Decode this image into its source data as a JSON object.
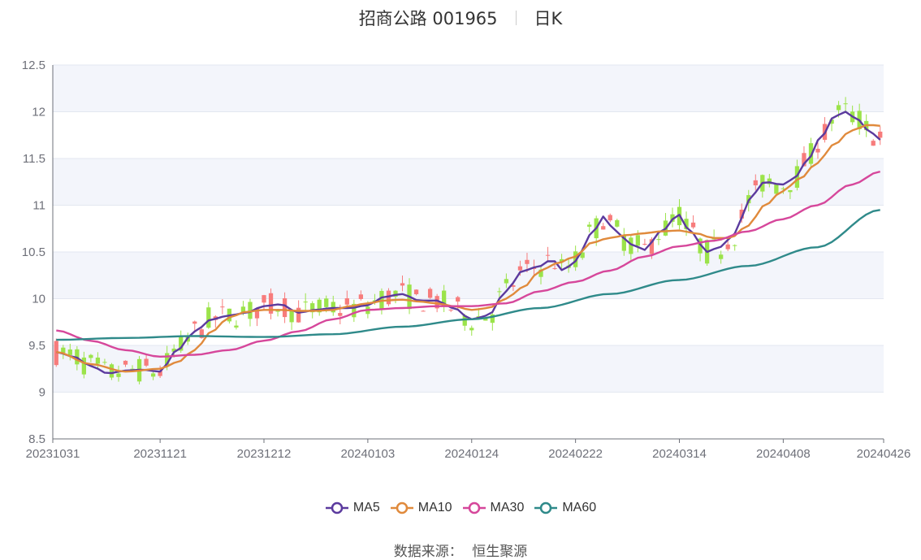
{
  "header": {
    "title": "招商公路 001965",
    "period": "日K"
  },
  "source": {
    "label": "数据来源：",
    "value": "恒生聚源"
  },
  "colors": {
    "up": "#f77c7c",
    "down": "#9be34a",
    "MA5": "#5b3a9e",
    "MA10": "#e08a3c",
    "MA30": "#d6479b",
    "MA60": "#2f8a8a",
    "band": "#f3f5fb",
    "grid": "#e3e7f0"
  },
  "chart_data": {
    "type": "candlestick",
    "y_ticks": [
      "12.5",
      "12",
      "11.5",
      "11",
      "10.5",
      "10",
      "9.5",
      "9",
      "8.5"
    ],
    "ylim": [
      8.5,
      12.5
    ],
    "x_tick_labels": [
      "20231031",
      "20231121",
      "20231212",
      "20240103",
      "20240124",
      "20240222",
      "20240314",
      "20240408",
      "20240426"
    ],
    "x_tick_index": [
      0,
      15,
      30,
      45,
      60,
      75,
      90,
      105,
      119
    ],
    "n_points": 120,
    "ma_anchors": {
      "MA5": [
        [
          0,
          9.43
        ],
        [
          3,
          9.38
        ],
        [
          6,
          9.28
        ],
        [
          9,
          9.2
        ],
        [
          12,
          9.23
        ],
        [
          15,
          9.24
        ],
        [
          18,
          9.22
        ],
        [
          21,
          9.45
        ],
        [
          24,
          9.65
        ],
        [
          27,
          9.78
        ],
        [
          30,
          9.82
        ],
        [
          33,
          9.85
        ],
        [
          36,
          9.92
        ],
        [
          39,
          9.94
        ],
        [
          42,
          9.85
        ],
        [
          45,
          9.88
        ],
        [
          48,
          9.9
        ],
        [
          51,
          9.9
        ],
        [
          54,
          9.93
        ],
        [
          57,
          10.02
        ],
        [
          60,
          10.05
        ],
        [
          63,
          9.98
        ],
        [
          66,
          9.98
        ],
        [
          69,
          9.9
        ],
        [
          72,
          9.78
        ],
        [
          75,
          9.82
        ],
        [
          78,
          10.08
        ],
        [
          81,
          10.3
        ],
        [
          84,
          10.35
        ],
        [
          86,
          10.42
        ],
        [
          88,
          10.3
        ],
        [
          90,
          10.4
        ],
        [
          93,
          10.7
        ],
        [
          95,
          10.88
        ],
        [
          97,
          10.72
        ],
        [
          100,
          10.58
        ],
        [
          102,
          10.52
        ],
        [
          105,
          10.72
        ],
        [
          108,
          10.9
        ],
        [
          110,
          10.72
        ],
        [
          113,
          10.5
        ],
        [
          115,
          10.55
        ],
        [
          118,
          10.7
        ],
        [
          120,
          11.05
        ],
        [
          123,
          11.25
        ],
        [
          126,
          11.22
        ],
        [
          128,
          11.28
        ],
        [
          130,
          11.45
        ],
        [
          133,
          11.75
        ],
        [
          135,
          11.95
        ],
        [
          137,
          12.0
        ],
        [
          139,
          11.92
        ],
        [
          141,
          11.8
        ],
        [
          143,
          11.7
        ]
      ],
      "MA10": [
        [
          0,
          9.43
        ],
        [
          6,
          9.3
        ],
        [
          12,
          9.22
        ],
        [
          18,
          9.25
        ],
        [
          21,
          9.32
        ],
        [
          24,
          9.45
        ],
        [
          27,
          9.65
        ],
        [
          30,
          9.8
        ],
        [
          33,
          9.86
        ],
        [
          36,
          9.88
        ],
        [
          39,
          9.88
        ],
        [
          42,
          9.87
        ],
        [
          45,
          9.87
        ],
        [
          48,
          9.88
        ],
        [
          51,
          9.92
        ],
        [
          54,
          9.95
        ],
        [
          57,
          9.98
        ],
        [
          60,
          9.99
        ],
        [
          63,
          9.97
        ],
        [
          66,
          9.95
        ],
        [
          69,
          9.92
        ],
        [
          72,
          9.88
        ],
        [
          75,
          9.9
        ],
        [
          78,
          10.0
        ],
        [
          81,
          10.12
        ],
        [
          84,
          10.3
        ],
        [
          87,
          10.38
        ],
        [
          90,
          10.45
        ],
        [
          93,
          10.6
        ],
        [
          96,
          10.65
        ],
        [
          99,
          10.68
        ],
        [
          102,
          10.7
        ],
        [
          105,
          10.72
        ],
        [
          108,
          10.73
        ],
        [
          111,
          10.7
        ],
        [
          114,
          10.65
        ],
        [
          117,
          10.65
        ],
        [
          120,
          10.78
        ],
        [
          123,
          11.0
        ],
        [
          126,
          11.15
        ],
        [
          129,
          11.28
        ],
        [
          132,
          11.45
        ],
        [
          135,
          11.65
        ],
        [
          138,
          11.8
        ],
        [
          141,
          11.86
        ],
        [
          143,
          11.85
        ]
      ],
      "MA30": [
        [
          0,
          9.66
        ],
        [
          6,
          9.55
        ],
        [
          12,
          9.45
        ],
        [
          18,
          9.38
        ],
        [
          24,
          9.4
        ],
        [
          30,
          9.45
        ],
        [
          36,
          9.55
        ],
        [
          42,
          9.65
        ],
        [
          48,
          9.78
        ],
        [
          54,
          9.88
        ],
        [
          60,
          9.9
        ],
        [
          66,
          9.92
        ],
        [
          72,
          9.92
        ],
        [
          78,
          9.95
        ],
        [
          84,
          10.08
        ],
        [
          90,
          10.18
        ],
        [
          96,
          10.3
        ],
        [
          102,
          10.45
        ],
        [
          108,
          10.56
        ],
        [
          114,
          10.62
        ],
        [
          120,
          10.72
        ],
        [
          126,
          10.85
        ],
        [
          132,
          11.0
        ],
        [
          138,
          11.22
        ],
        [
          143,
          11.36
        ]
      ],
      "MA60": [
        [
          0,
          9.56
        ],
        [
          12,
          9.58
        ],
        [
          24,
          9.6
        ],
        [
          36,
          9.59
        ],
        [
          48,
          9.62
        ],
        [
          60,
          9.7
        ],
        [
          72,
          9.78
        ],
        [
          84,
          9.9
        ],
        [
          96,
          10.05
        ],
        [
          108,
          10.2
        ],
        [
          120,
          10.35
        ],
        [
          132,
          10.55
        ],
        [
          143,
          10.95
        ]
      ]
    },
    "legend": [
      "MA5",
      "MA10",
      "MA30",
      "MA60"
    ],
    "legend_position": "bottom",
    "grid": true
  }
}
